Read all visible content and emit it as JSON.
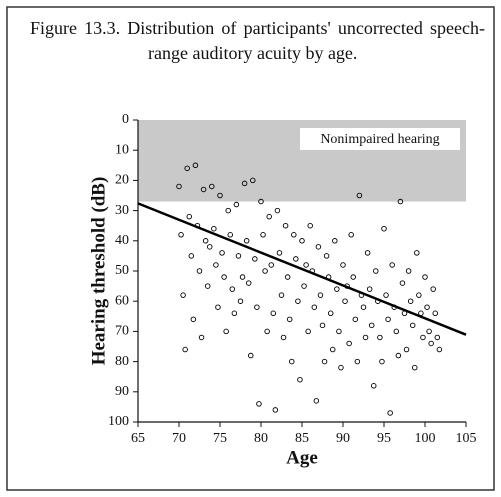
{
  "chart_data": {
    "type": "scatter",
    "title": "Figure 13.3. Distribution of participants' uncorrected speech-range auditory acuity by age.",
    "x_label": "Age",
    "y_label": "Hearing threshold (dB)",
    "annotation": "Nonimpaired hearing",
    "shaded_band": [
      0,
      27
    ],
    "xlim": [
      65,
      105
    ],
    "ylim": [
      100,
      0
    ],
    "xticks": [
      65,
      70,
      75,
      80,
      85,
      90,
      95,
      100,
      105
    ],
    "yticks": [
      0,
      10,
      20,
      30,
      40,
      50,
      60,
      70,
      80,
      90,
      100
    ],
    "series": [
      {
        "color": "#000000",
        "x": [
          70,
          70.25,
          70.5,
          70.75,
          71,
          71.25,
          71.5,
          71.75,
          72,
          72.25,
          72.5,
          72.75,
          73,
          73.25,
          73.5,
          73.75,
          74,
          74.25,
          74.5,
          74.75,
          75,
          75.25,
          75.5,
          75.75,
          76,
          76.25,
          76.5,
          76.75,
          77,
          77.25,
          77.5,
          77.75,
          78,
          78.25,
          78.5,
          78.75,
          79,
          79.25,
          79.5,
          79.75,
          80,
          80.25,
          80.5,
          80.75,
          81,
          81.25,
          81.5,
          81.75,
          82,
          82.25,
          82.5,
          82.75,
          83,
          83.25,
          83.5,
          83.75,
          84,
          84.25,
          84.5,
          84.75,
          85,
          85.25,
          85.5,
          85.75,
          86,
          86.25,
          86.5,
          86.75,
          87,
          87.25,
          87.5,
          87.75,
          88,
          88.25,
          88.5,
          88.75,
          89,
          89.25,
          89.5,
          89.75,
          90,
          90.25,
          90.5,
          90.75,
          91,
          91.25,
          91.5,
          91.75,
          92,
          92.25,
          92.5,
          92.75,
          93,
          93.25,
          93.5,
          93.75,
          94,
          94.25,
          94.5,
          94.75,
          95,
          95.25,
          95.5,
          95.75,
          96,
          96.25,
          96.5,
          96.75,
          97,
          97.25,
          97.5,
          97.75,
          98,
          98.25,
          98.5,
          98.75,
          99,
          99.25,
          99.5,
          99.75,
          100,
          100.25,
          100.5,
          100.75,
          101,
          101.25,
          101.5,
          101.75
        ],
        "values": [
          22,
          38,
          58,
          76,
          16,
          32,
          45,
          66,
          15,
          35,
          50,
          72,
          23,
          40,
          55,
          42,
          22,
          36,
          48,
          62,
          25,
          44,
          52,
          70,
          30,
          38,
          56,
          64,
          28,
          45,
          60,
          52,
          21,
          40,
          54,
          78,
          20,
          46,
          62,
          94,
          27,
          38,
          50,
          70,
          32,
          48,
          64,
          96,
          30,
          44,
          58,
          72,
          35,
          52,
          66,
          80,
          38,
          46,
          60,
          86,
          40,
          55,
          48,
          70,
          35,
          50,
          62,
          93,
          42,
          58,
          68,
          80,
          45,
          52,
          64,
          76,
          40,
          56,
          70,
          82,
          48,
          60,
          55,
          74,
          38,
          52,
          66,
          80,
          25,
          58,
          62,
          72,
          44,
          56,
          68,
          88,
          50,
          60,
          72,
          80,
          36,
          58,
          66,
          97,
          48,
          62,
          70,
          78,
          27,
          54,
          64,
          76,
          50,
          60,
          68,
          82,
          44,
          58,
          64,
          72,
          52,
          62,
          70,
          74,
          56,
          64,
          72,
          76
        ]
      }
    ],
    "trend_line": {
      "x": [
        65,
        105
      ],
      "values": [
        27.6,
        71.1
      ]
    }
  }
}
